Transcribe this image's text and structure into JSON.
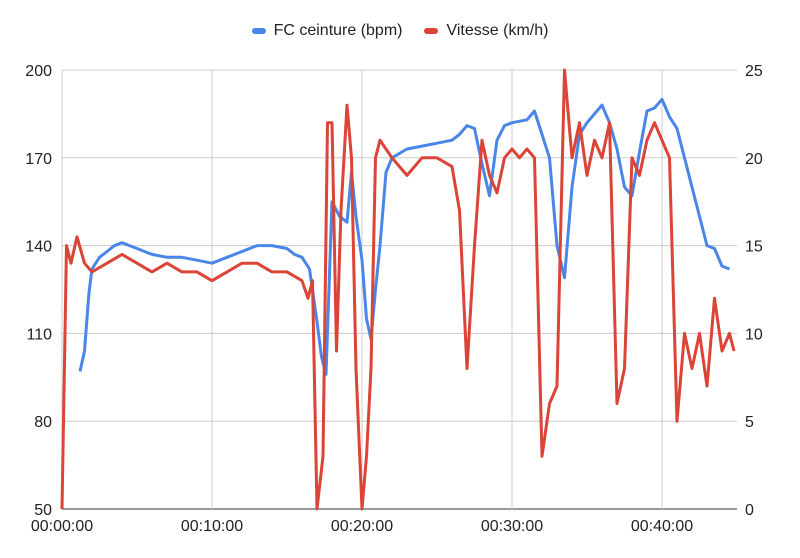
{
  "chart_data": {
    "type": "line",
    "title": "",
    "legend_position": "top",
    "grid": true,
    "x_ticks": [
      "00:00:00",
      "00:10:00",
      "00:20:00",
      "00:30:00",
      "00:40:00"
    ],
    "x_range_min": [
      0,
      45
    ],
    "y_left": {
      "range": [
        50,
        200
      ],
      "ticks": [
        "50",
        "80",
        "110",
        "140",
        "170",
        "200"
      ]
    },
    "y_right": {
      "range": [
        0,
        25
      ],
      "ticks": [
        "0",
        "5",
        "10",
        "15",
        "20",
        "25"
      ]
    },
    "series": [
      {
        "name": "FC ceinture (bpm)",
        "color": "#4a86e8",
        "axis": "left",
        "points": [
          [
            1.2,
            97
          ],
          [
            1.5,
            104
          ],
          [
            1.8,
            124
          ],
          [
            2.0,
            132
          ],
          [
            2.5,
            136
          ],
          [
            3,
            138
          ],
          [
            3.5,
            140
          ],
          [
            4,
            141
          ],
          [
            4.5,
            140
          ],
          [
            5,
            139
          ],
          [
            5.5,
            138
          ],
          [
            6,
            137
          ],
          [
            7,
            136
          ],
          [
            8,
            136
          ],
          [
            9,
            135
          ],
          [
            10,
            134
          ],
          [
            11,
            136
          ],
          [
            12,
            138
          ],
          [
            13,
            140
          ],
          [
            14,
            140
          ],
          [
            15,
            139
          ],
          [
            15.5,
            137
          ],
          [
            16,
            136
          ],
          [
            16.5,
            132
          ],
          [
            17,
            114
          ],
          [
            17.3,
            102
          ],
          [
            17.6,
            96
          ],
          [
            18,
            155
          ],
          [
            18.5,
            150
          ],
          [
            19,
            148
          ],
          [
            19.3,
            165
          ],
          [
            19.6,
            150
          ],
          [
            20,
            135
          ],
          [
            20.3,
            115
          ],
          [
            20.6,
            108
          ],
          [
            20.9,
            125
          ],
          [
            21.2,
            140
          ],
          [
            21.6,
            165
          ],
          [
            22,
            170
          ],
          [
            23,
            173
          ],
          [
            24,
            174
          ],
          [
            25,
            175
          ],
          [
            26,
            176
          ],
          [
            26.5,
            178
          ],
          [
            27,
            181
          ],
          [
            27.5,
            180
          ],
          [
            28,
            168
          ],
          [
            28.5,
            157
          ],
          [
            29,
            176
          ],
          [
            29.5,
            181
          ],
          [
            30,
            182
          ],
          [
            31,
            183
          ],
          [
            31.5,
            186
          ],
          [
            32,
            178
          ],
          [
            32.5,
            170
          ],
          [
            33,
            140
          ],
          [
            33.5,
            129
          ],
          [
            34,
            160
          ],
          [
            34.5,
            178
          ],
          [
            35,
            182
          ],
          [
            35.5,
            185
          ],
          [
            36,
            188
          ],
          [
            36.5,
            182
          ],
          [
            37,
            173
          ],
          [
            37.5,
            160
          ],
          [
            38,
            157
          ],
          [
            38.5,
            172
          ],
          [
            39,
            186
          ],
          [
            39.5,
            187
          ],
          [
            40,
            190
          ],
          [
            40.5,
            184
          ],
          [
            41,
            180
          ],
          [
            41.5,
            170
          ],
          [
            42,
            160
          ],
          [
            42.5,
            150
          ],
          [
            43,
            140
          ],
          [
            43.5,
            139
          ],
          [
            44,
            133
          ],
          [
            44.5,
            132
          ]
        ]
      },
      {
        "name": "Vitesse (km/h)",
        "color": "#db4437",
        "axis": "right",
        "points": [
          [
            0,
            0
          ],
          [
            0.3,
            15
          ],
          [
            0.6,
            14
          ],
          [
            1,
            15.5
          ],
          [
            1.5,
            14
          ],
          [
            2,
            13.5
          ],
          [
            3,
            14
          ],
          [
            4,
            14.5
          ],
          [
            5,
            14
          ],
          [
            6,
            13.5
          ],
          [
            7,
            14
          ],
          [
            8,
            13.5
          ],
          [
            9,
            13.5
          ],
          [
            10,
            13
          ],
          [
            11,
            13.5
          ],
          [
            12,
            14
          ],
          [
            13,
            14
          ],
          [
            14,
            13.5
          ],
          [
            15,
            13.5
          ],
          [
            16,
            13
          ],
          [
            16.4,
            12
          ],
          [
            16.7,
            13
          ],
          [
            17,
            0
          ],
          [
            17.4,
            3
          ],
          [
            17.7,
            22
          ],
          [
            18,
            22
          ],
          [
            18.3,
            9
          ],
          [
            18.6,
            17
          ],
          [
            19,
            23
          ],
          [
            19.3,
            20
          ],
          [
            19.6,
            8
          ],
          [
            20,
            0
          ],
          [
            20.3,
            3
          ],
          [
            20.6,
            8
          ],
          [
            20.9,
            20
          ],
          [
            21.2,
            21
          ],
          [
            22,
            20
          ],
          [
            23,
            19
          ],
          [
            24,
            20
          ],
          [
            25,
            20
          ],
          [
            26,
            19.5
          ],
          [
            26.5,
            17
          ],
          [
            27,
            8
          ],
          [
            27.5,
            15
          ],
          [
            28,
            21
          ],
          [
            28.5,
            19
          ],
          [
            29,
            18
          ],
          [
            29.5,
            20
          ],
          [
            30,
            20.5
          ],
          [
            30.5,
            20
          ],
          [
            31,
            20.5
          ],
          [
            31.5,
            20
          ],
          [
            32,
            3
          ],
          [
            32.5,
            6
          ],
          [
            33,
            7
          ],
          [
            33.5,
            25
          ],
          [
            34,
            20
          ],
          [
            34.5,
            22
          ],
          [
            35,
            19
          ],
          [
            35.5,
            21
          ],
          [
            36,
            20
          ],
          [
            36.5,
            22
          ],
          [
            37,
            6
          ],
          [
            37.5,
            8
          ],
          [
            38,
            20
          ],
          [
            38.5,
            19
          ],
          [
            39,
            21
          ],
          [
            39.5,
            22
          ],
          [
            40,
            21
          ],
          [
            40.5,
            20
          ],
          [
            41,
            5
          ],
          [
            41.5,
            10
          ],
          [
            42,
            8
          ],
          [
            42.5,
            10
          ],
          [
            43,
            7
          ],
          [
            43.5,
            12
          ],
          [
            44,
            9
          ],
          [
            44.5,
            10
          ],
          [
            44.8,
            9
          ]
        ]
      }
    ]
  }
}
